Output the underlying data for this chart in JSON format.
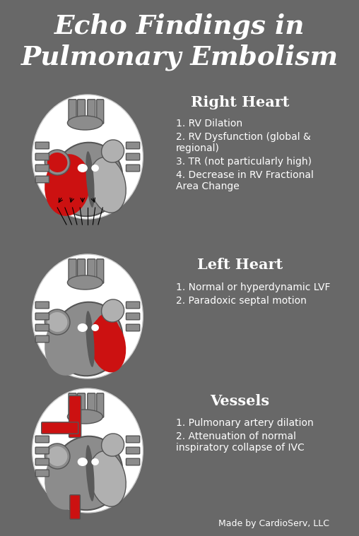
{
  "title_line1": "Echo Findings in",
  "title_line2": "Pulmonary Embolism",
  "background_color": "#686868",
  "text_color": "#ffffff",
  "section_titles": [
    "Right Heart",
    "Left Heart",
    "Vessels"
  ],
  "section_title_color": "#ffffff",
  "section_items": [
    [
      "1. RV Dilation",
      "2. RV Dysfunction (global &\nregional)",
      "3. TR (not particularly high)",
      "4. Decrease in RV Fractional\nArea Change"
    ],
    [
      "1. Normal or hyperdynamic LVF",
      "2. Paradoxic septal motion"
    ],
    [
      "1. Pulmonary artery dilation",
      "2. Attenuation of normal\ninspiratory collapse of IVC"
    ]
  ],
  "footer": "Made by CardioServ, LLC",
  "circle_bg": "#ffffff",
  "heart_gray_light": "#b0b0b0",
  "heart_gray": "#8c8c8c",
  "heart_gray_dark": "#5a5a5a",
  "heart_red": "#cc1111",
  "heart_outline": "#555555"
}
